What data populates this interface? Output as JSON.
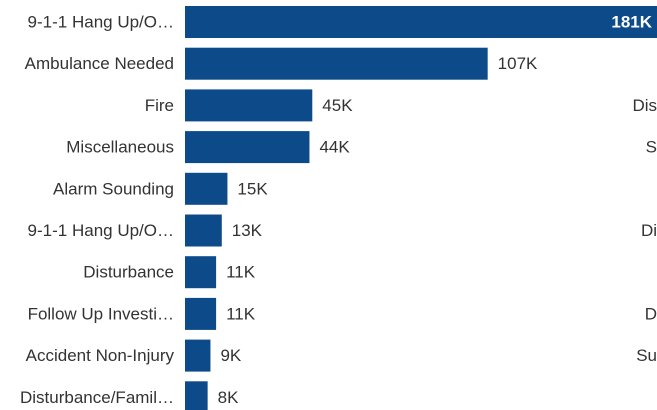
{
  "chart_data": {
    "type": "bar",
    "orientation": "horizontal",
    "categories": [
      "9-1-1 Hang Up/O…",
      "Ambulance Needed",
      "Fire",
      "Miscellaneous",
      "Alarm Sounding",
      "9-1-1 Hang Up/O…",
      "Disturbance",
      "Follow Up Investi…",
      "Accident Non-Injury",
      "Disturbance/Famil…"
    ],
    "values": [
      181000,
      107000,
      45000,
      44000,
      15000,
      13000,
      11000,
      11000,
      9000,
      8000
    ],
    "value_labels": [
      "181K",
      "107K",
      "45K",
      "44K",
      "15K",
      "13K",
      "11K",
      "11K",
      "9K",
      "8K"
    ],
    "bar_color": "#0d4a8a",
    "grid": false,
    "legend": "none"
  },
  "clipped_right_text": [
    {
      "row": 2,
      "text": "Dis"
    },
    {
      "row": 3,
      "text": "S"
    },
    {
      "row": 5,
      "text": "Di"
    },
    {
      "row": 7,
      "text": "D"
    },
    {
      "row": 8,
      "text": "Su"
    }
  ]
}
